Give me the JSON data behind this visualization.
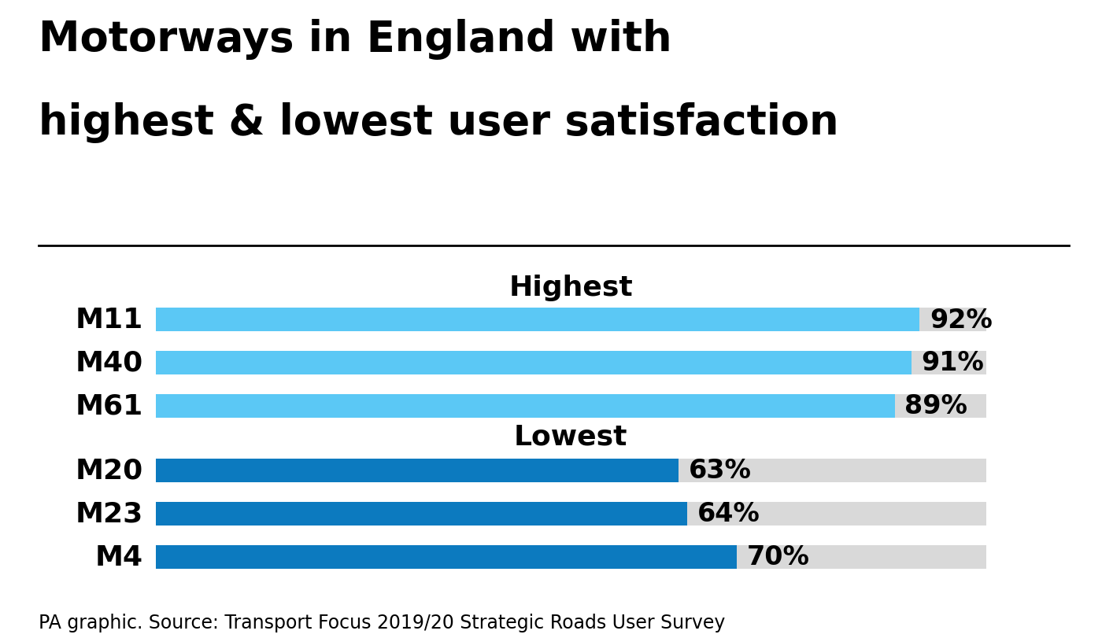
{
  "title_line1": "Motorways in England with",
  "title_line2": "highest & lowest user satisfaction",
  "title_fontsize": 38,
  "source_text": "PA graphic. Source: Transport Focus 2019/20 Strategic Roads User Survey",
  "highest_label": "Highest",
  "lowest_label": "Lowest",
  "categories": [
    "M11",
    "M40",
    "M61",
    "M20",
    "M23",
    "M4"
  ],
  "values": [
    92,
    91,
    89,
    63,
    64,
    70
  ],
  "max_value": 100,
  "bar_color_highest": "#5bc8f5",
  "bar_color_lowest": "#0c7abf",
  "bg_bar_color": "#d9d9d9",
  "background_color": "#ffffff",
  "label_fontsize": 26,
  "value_fontsize": 24,
  "section_fontsize": 26,
  "source_fontsize": 17,
  "bar_height": 0.55
}
